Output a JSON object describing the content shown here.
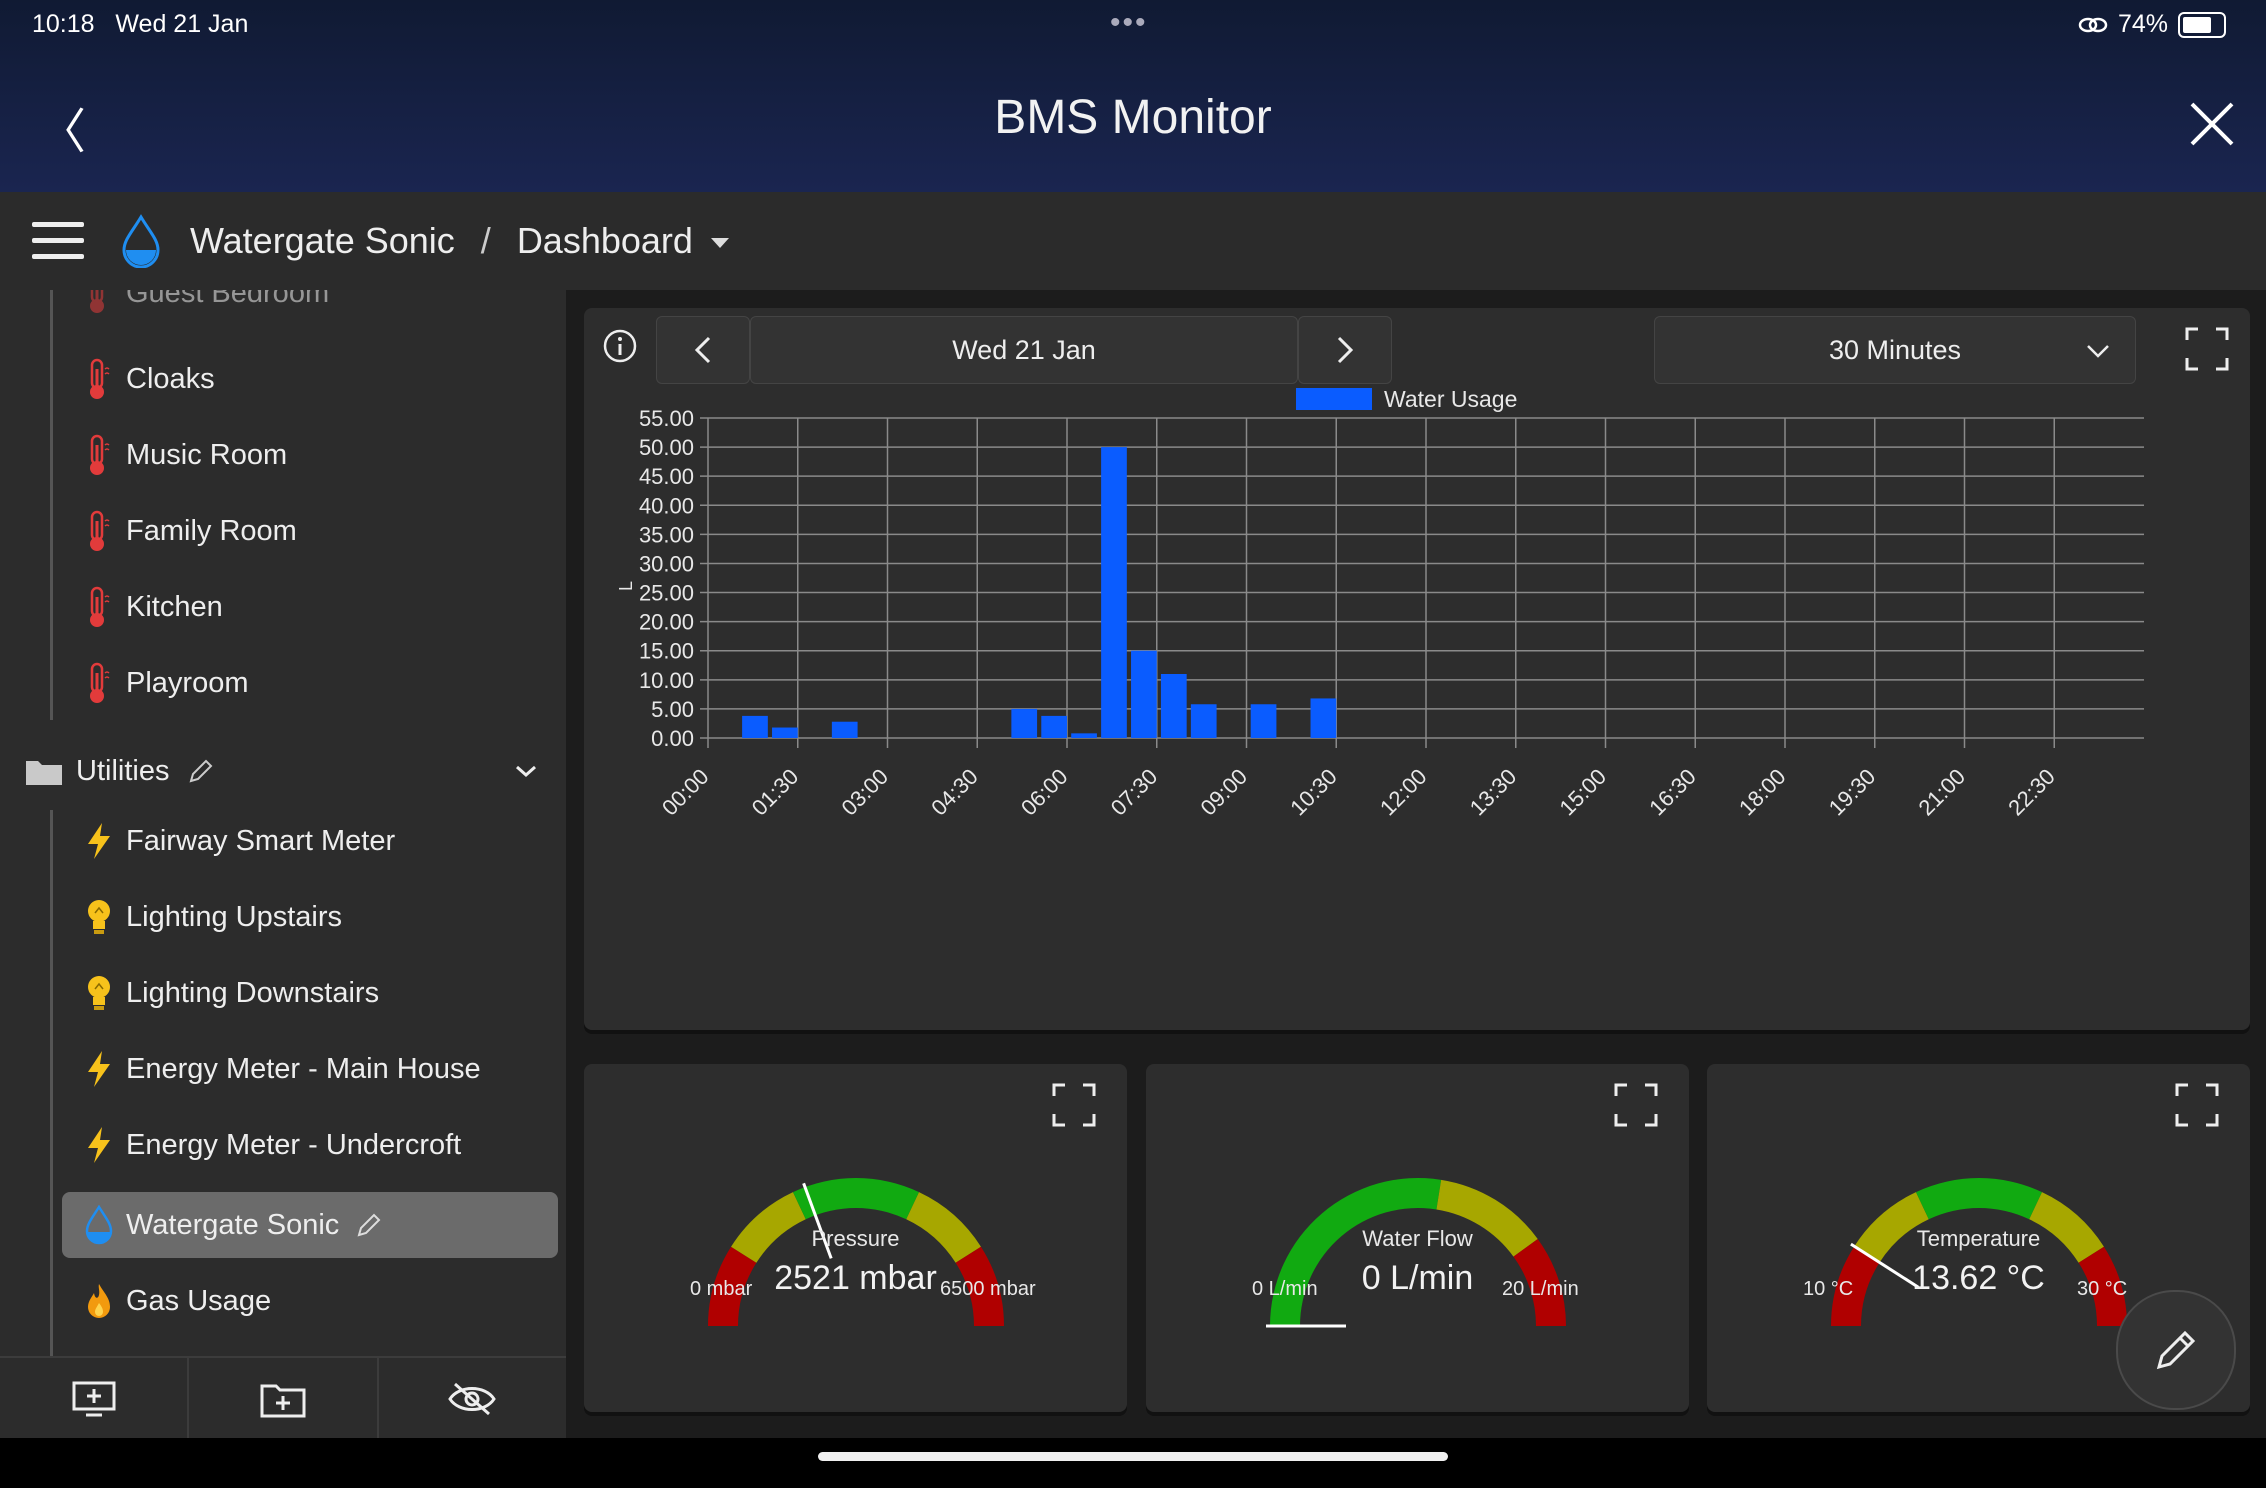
{
  "status": {
    "time": "10:18",
    "date": "Wed 21 Jan",
    "battery": "74%"
  },
  "window": {
    "title": "BMS Monitor"
  },
  "breadcrumb": {
    "site": "Watergate Sonic",
    "separator": "/",
    "page": "Dashboard"
  },
  "sidebar": {
    "rooms": [
      {
        "label": "Guest Bedroom"
      },
      {
        "label": "Cloaks"
      },
      {
        "label": "Music Room"
      },
      {
        "label": "Family Room"
      },
      {
        "label": "Kitchen"
      },
      {
        "label": "Playroom"
      }
    ],
    "section": {
      "label": "Utilities"
    },
    "utilities": [
      {
        "label": "Fairway Smart Meter",
        "icon": "bolt-icon"
      },
      {
        "label": "Lighting Upstairs",
        "icon": "bulb-icon"
      },
      {
        "label": "Lighting Downstairs",
        "icon": "bulb-icon"
      },
      {
        "label": "Energy Meter - Main House",
        "icon": "bolt-icon"
      },
      {
        "label": "Energy Meter - Undercroft",
        "icon": "bolt-icon"
      },
      {
        "label": "Watergate Sonic",
        "icon": "water-drop-icon"
      },
      {
        "label": "Gas Usage",
        "icon": "flame-icon"
      }
    ]
  },
  "toolbar": {
    "date": "Wed 21 Jan",
    "interval": "30 Minutes"
  },
  "chart_data": {
    "type": "bar",
    "legend": [
      "Water Usage"
    ],
    "ylabel": "L",
    "ylim": [
      0,
      55
    ],
    "yticks": [
      "55.00",
      "50.00",
      "45.00",
      "40.00",
      "35.00",
      "30.00",
      "25.00",
      "20.00",
      "15.00",
      "10.00",
      "5.00",
      "0.00"
    ],
    "xticks": [
      "00:00",
      "01:30",
      "03:00",
      "04:30",
      "06:00",
      "07:30",
      "09:00",
      "10:30",
      "12:00",
      "13:30",
      "15:00",
      "16:30",
      "18:00",
      "19:30",
      "21:00",
      "22:30"
    ],
    "x": [
      "00:00",
      "00:30",
      "01:00",
      "01:30",
      "02:00",
      "02:30",
      "03:00",
      "03:30",
      "04:00",
      "04:30",
      "05:00",
      "05:30",
      "06:00",
      "06:30",
      "07:00",
      "07:30",
      "08:00",
      "08:30",
      "09:00",
      "09:30",
      "10:00",
      "10:30"
    ],
    "series": [
      {
        "name": "Water Usage",
        "values": [
          0,
          3.8,
          1.8,
          0,
          2.8,
          0,
          0,
          0,
          0,
          0,
          5.0,
          3.8,
          0.8,
          50.0,
          15.0,
          11.0,
          5.8,
          0,
          5.8,
          0,
          6.8,
          0
        ]
      }
    ],
    "color": "#0a5cff"
  },
  "gauges": [
    {
      "label": "Pressure",
      "value": "2521 mbar",
      "min": "0 mbar",
      "max": "6500 mbar",
      "fraction": 0.388
    },
    {
      "label": "Water Flow",
      "value": "0 L/min",
      "min": "0 L/min",
      "max": "20 L/min",
      "fraction": 0
    },
    {
      "label": "Temperature",
      "value": "13.62 °C",
      "min": "10 °C",
      "max": "30 °C",
      "fraction": 0.181
    }
  ]
}
